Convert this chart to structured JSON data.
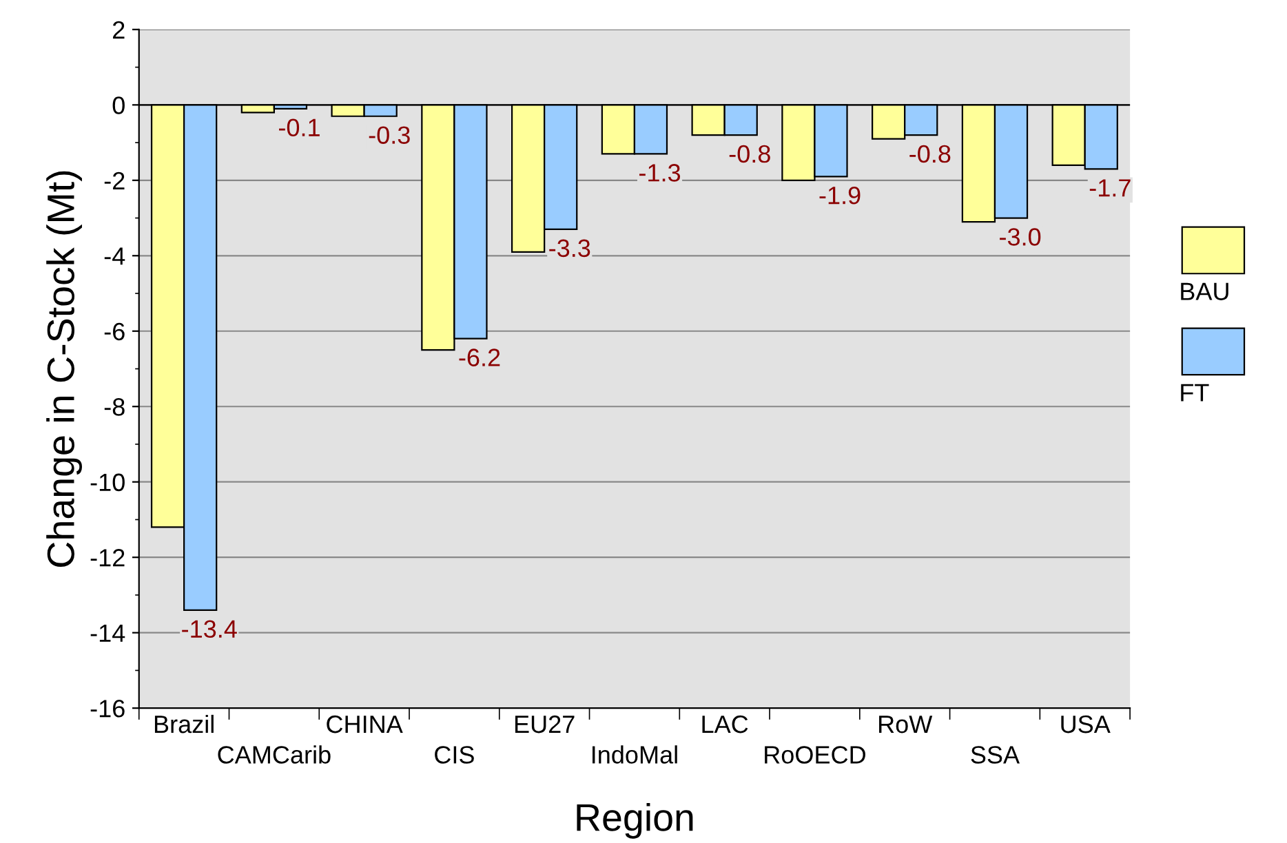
{
  "chart_data": {
    "type": "bar",
    "xlabel": "Region",
    "ylabel": "Change in C-Stock (Mt)",
    "categories": [
      "Brazil",
      "CAMCarib",
      "CHINA",
      "CIS",
      "EU27",
      "IndoMal",
      "LAC",
      "RoOECD",
      "RoW",
      "SSA",
      "USA"
    ],
    "series": [
      {
        "name": "BAU",
        "color": "#ffff99",
        "values": [
          -11.2,
          -0.2,
          -0.3,
          -6.5,
          -3.9,
          -1.3,
          -0.8,
          -2.0,
          -0.9,
          -3.1,
          -1.6
        ]
      },
      {
        "name": "FT",
        "color": "#99ccff",
        "values": [
          -13.4,
          -0.1,
          -0.3,
          -6.2,
          -3.3,
          -1.3,
          -0.8,
          -1.9,
          -0.8,
          -3.0,
          -1.7
        ],
        "value_labels": [
          "-13.4",
          "-0.1",
          "-0.3",
          "-6.2",
          "-3.3",
          "-1.3",
          "-0.8",
          "-1.9",
          "-0.8",
          "-3.0",
          "-1.7"
        ]
      }
    ],
    "ylim": [
      -16,
      2
    ],
    "yticks": [
      -16,
      -14,
      -12,
      -10,
      -8,
      -6,
      -4,
      -2,
      0,
      2
    ],
    "grid": "y",
    "legend": "right"
  }
}
